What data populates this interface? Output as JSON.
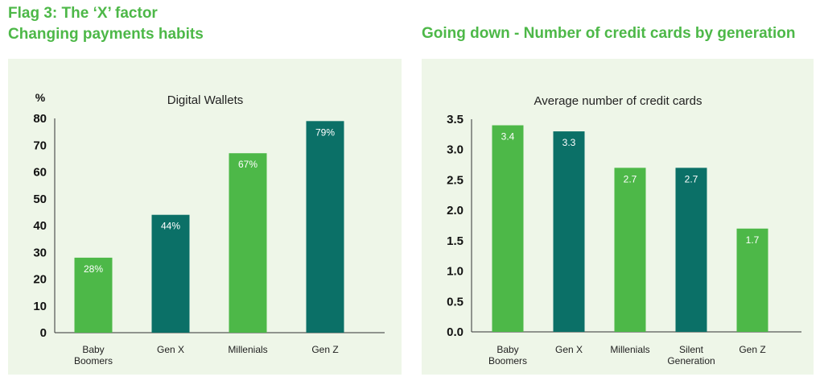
{
  "headings": {
    "left_line1": "Flag 3: The ‘X’ factor",
    "left_line2": "Changing payments habits",
    "right": "Going down - Number of credit cards by generation"
  },
  "colors": {
    "green": "#4db848",
    "teal": "#0b7067",
    "panel_bg": "#eef6e8"
  },
  "chart_data": [
    {
      "type": "bar",
      "title": "Digital Wallets",
      "ylabel": "%",
      "xlabel": "",
      "ylim": [
        0,
        80
      ],
      "yticks": [
        "0",
        "10",
        "20",
        "30",
        "40",
        "50",
        "60",
        "70",
        "80"
      ],
      "categories": [
        [
          "Baby",
          "Boomers"
        ],
        [
          "Gen X"
        ],
        [
          "Millenials"
        ],
        [
          "Gen Z"
        ]
      ],
      "values": [
        28,
        44,
        67,
        79
      ],
      "data_labels": [
        "28%",
        "44%",
        "67%",
        "79%"
      ],
      "bar_colors": [
        "#4db848",
        "#0b7067",
        "#4db848",
        "#0b7067"
      ],
      "grid": false
    },
    {
      "type": "bar",
      "title": "Average number of credit cards",
      "ylabel": "",
      "xlabel": "",
      "ylim": [
        0,
        3.5
      ],
      "yticks": [
        "0.0",
        "0.5",
        "1.0",
        "1.5",
        "2.0",
        "2.5",
        "3.0",
        "3.5"
      ],
      "categories": [
        [
          "Baby",
          "Boomers"
        ],
        [
          "Gen X"
        ],
        [
          "Millenials"
        ],
        [
          "Silent",
          "Generation"
        ],
        [
          "Gen Z"
        ]
      ],
      "values": [
        3.4,
        3.3,
        2.7,
        2.7,
        1.7
      ],
      "data_labels": [
        "3.4",
        "3.3",
        "2.7",
        "2.7",
        "1.7"
      ],
      "bar_colors": [
        "#4db848",
        "#0b7067",
        "#4db848",
        "#0b7067",
        "#4db848"
      ],
      "grid": false
    }
  ]
}
